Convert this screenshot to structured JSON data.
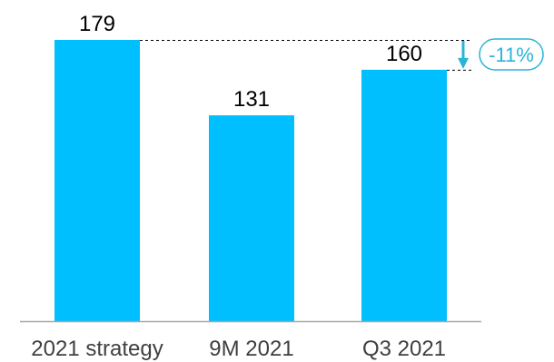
{
  "chart_data": {
    "type": "bar",
    "categories": [
      "2021 strategy",
      "9M 2021",
      "Q3 2021"
    ],
    "values": [
      179,
      131,
      160
    ],
    "data_labels": [
      "179",
      "131",
      "160"
    ],
    "ylim": [
      0,
      179
    ],
    "grid": false,
    "colors": {
      "bar": "#00BFFF",
      "axis": "#A6A6A6",
      "annotation": "#2AB4D9",
      "guide": "#000000"
    },
    "annotation": {
      "text": "-11%",
      "from_category": "2021 strategy",
      "to_category": "Q3 2021",
      "arrow": "down"
    }
  }
}
